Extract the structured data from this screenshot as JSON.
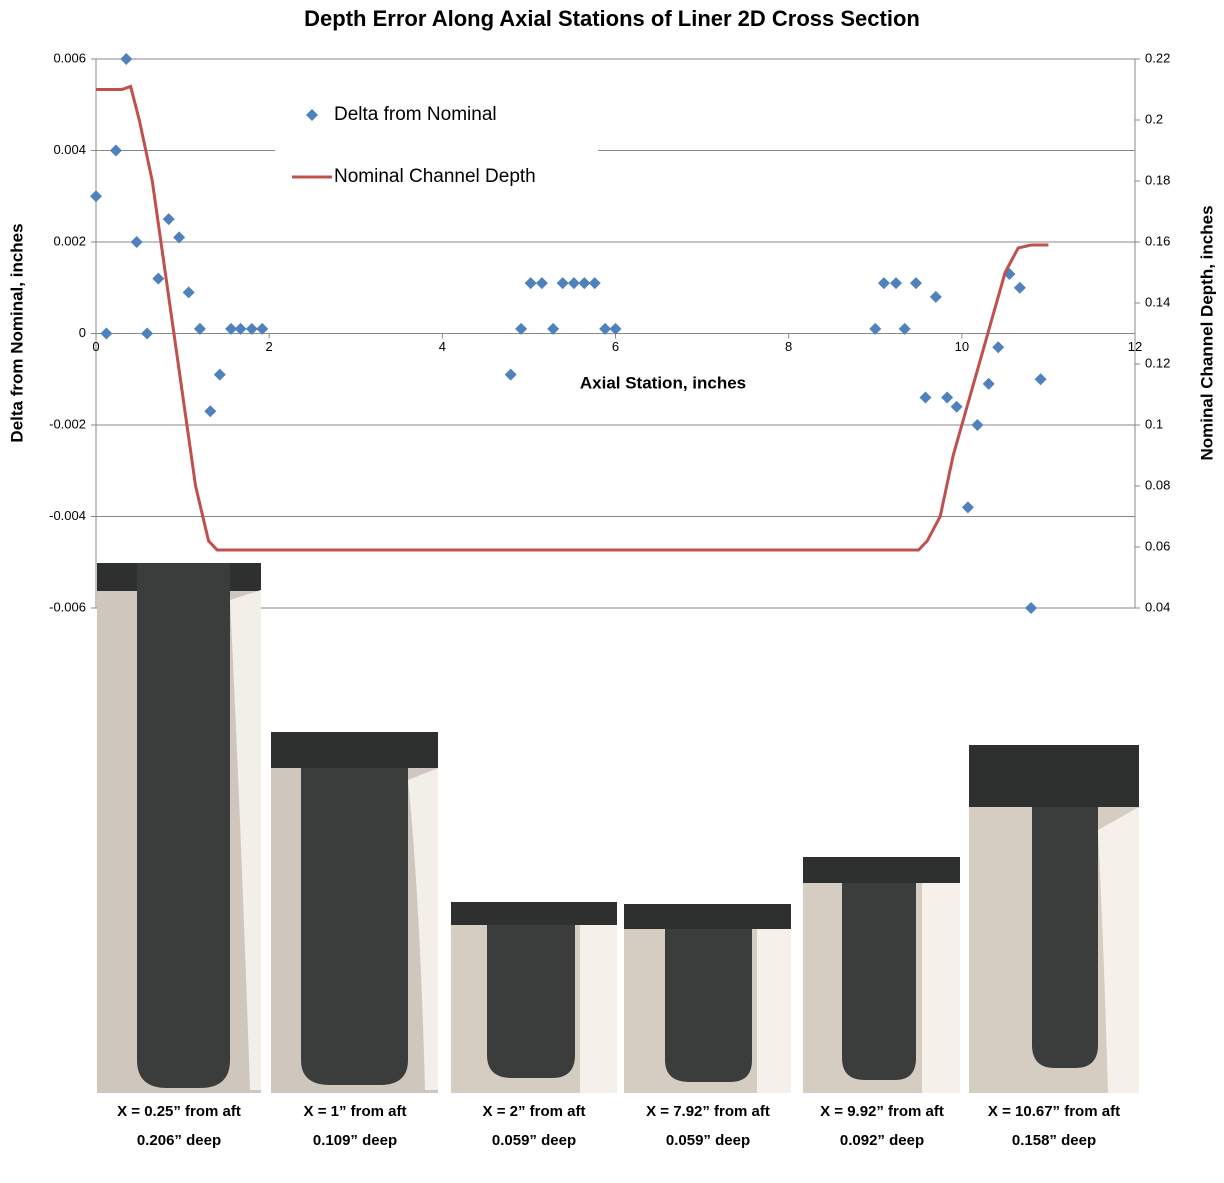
{
  "chart_data": {
    "type": "scatter",
    "title": "Depth Error Along Axial Stations of Liner 2D Cross Section",
    "xlabel": "Axial Station, inches",
    "ylabel": "Delta from Nominal, inches",
    "y2label": "Nominal Channel Depth, inches",
    "xlim": [
      0,
      12
    ],
    "xticks": [
      0,
      2,
      4,
      6,
      8,
      10,
      12
    ],
    "ylim": [
      -0.006,
      0.006
    ],
    "yticks": [
      0.006,
      0.004,
      0.002,
      0,
      -0.002,
      -0.004,
      -0.006
    ],
    "y2lim": [
      0.04,
      0.22
    ],
    "y2ticks": [
      0.22,
      0.2,
      0.18,
      0.16,
      0.14,
      0.12,
      0.1,
      0.08,
      0.06,
      0.04
    ],
    "grid": true,
    "series": [
      {
        "name": "Delta from Nominal",
        "color": "#4f81bd",
        "type": "scatter",
        "x": [
          0,
          0.12,
          0.23,
          0.35,
          0.47,
          0.59,
          0.72,
          0.84,
          0.96,
          1.07,
          1.2,
          1.32,
          1.43,
          1.56,
          1.67,
          1.8,
          1.92,
          4.79,
          4.91,
          5.02,
          5.15,
          5.28,
          5.39,
          5.52,
          5.64,
          5.76,
          5.88,
          6.0,
          9.0,
          9.1,
          9.24,
          9.34,
          9.47,
          9.58,
          9.7,
          9.83,
          9.94,
          10.07,
          10.18,
          10.31,
          10.42,
          10.55,
          10.67,
          10.8,
          10.91
        ],
        "values": [
          0.003,
          0,
          0.004,
          0.006,
          0.002,
          0,
          0.0012,
          0.0025,
          0.0021,
          0.0009,
          0.0001,
          -0.0017,
          -0.0009,
          0.0001,
          0.0001,
          0.0001,
          0.0001,
          -0.0009,
          0.0001,
          0.0011,
          0.0011,
          0.0001,
          0.0011,
          0.0011,
          0.0011,
          0.0011,
          0.0001,
          0.0001,
          0.0001,
          0.0011,
          0.0011,
          0.0001,
          0.0011,
          -0.0014,
          0.0008,
          -0.0014,
          -0.0016,
          -0.0038,
          -0.002,
          -0.0011,
          -0.0003,
          0.0013,
          0.001,
          -0.006,
          -0.001
        ]
      },
      {
        "name": "Nominal Channel Depth",
        "color": "#c0504d",
        "type": "line",
        "axis": "y2",
        "x": [
          0,
          0.3,
          0.4,
          0.5,
          0.65,
          0.8,
          0.95,
          1.05,
          1.15,
          1.3,
          1.4,
          2,
          9.4,
          9.5,
          9.6,
          9.75,
          9.9,
          10.1,
          10.3,
          10.5,
          10.65,
          10.8,
          11
        ],
        "values": [
          0.21,
          0.21,
          0.211,
          0.2,
          0.18,
          0.15,
          0.12,
          0.1,
          0.08,
          0.062,
          0.059,
          0.059,
          0.059,
          0.059,
          0.062,
          0.07,
          0.09,
          0.11,
          0.13,
          0.15,
          0.158,
          0.159,
          0.159
        ]
      }
    ]
  },
  "photos": [
    {
      "caption": [
        "X = 0.25” from aft",
        "0.206” deep"
      ]
    },
    {
      "caption": [
        "X = 1” from aft",
        "0.109” deep"
      ]
    },
    {
      "caption": [
        "X = 2” from aft",
        "0.059” deep"
      ]
    },
    {
      "caption": [
        "X = 7.92” from aft",
        "0.059” deep"
      ]
    },
    {
      "caption": [
        "X = 9.92” from aft",
        "0.092” deep"
      ]
    },
    {
      "caption": [
        "X = 10.67” from aft",
        "0.158” deep"
      ]
    }
  ]
}
